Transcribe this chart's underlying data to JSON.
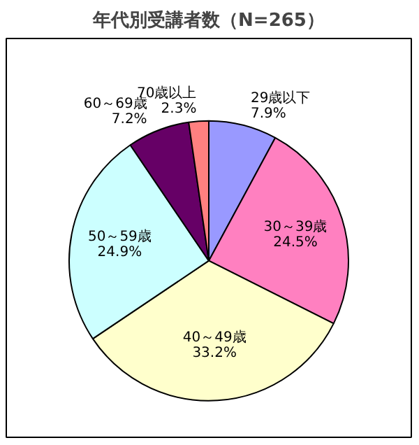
{
  "chart_data": {
    "type": "pie",
    "title": "年代別受講者数（N=265）",
    "categories": [
      "29歳以下",
      "30～39歳",
      "40～49歳",
      "50～59歳",
      "60～69歳",
      "70歳以上"
    ],
    "values": [
      7.9,
      24.5,
      33.2,
      24.9,
      7.2,
      2.3
    ],
    "colors": [
      "#9999ff",
      "#ff80c0",
      "#ffffcc",
      "#ccffff",
      "#660066",
      "#ff8080"
    ],
    "value_labels": [
      "7.9%",
      "24.5%",
      "33.2%",
      "24.9%",
      "7.2%",
      "2.3%"
    ]
  }
}
